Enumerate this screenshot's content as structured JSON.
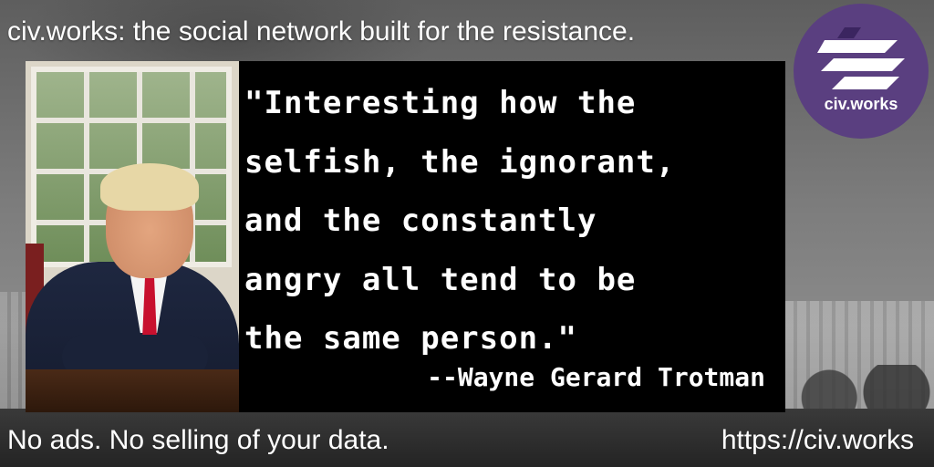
{
  "header": {
    "headline": "civ.works: the social network built for the resistance."
  },
  "logo": {
    "name": "civ.works",
    "background": "#5a3f80"
  },
  "quote": {
    "text": "\"Interesting how the\nselfish, the ignorant,\nand the constantly\nangry all tend to be\nthe same person.\"",
    "author": "--Wayne Gerard Trotman"
  },
  "footer": {
    "tagline": "No ads. No selling of your data.",
    "url": "https://civ.works"
  },
  "colors": {
    "quote_background": "#000000",
    "text": "#ffffff"
  }
}
